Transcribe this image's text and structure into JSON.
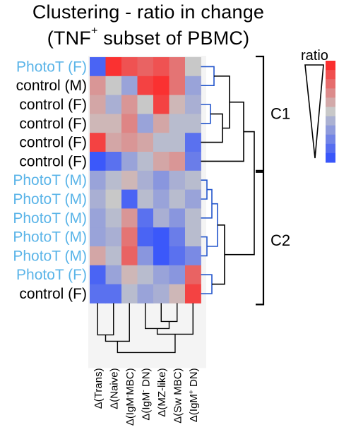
{
  "chart_data": {
    "type": "heatmap",
    "title_parts": [
      "Clustering - ratio in change",
      "(TNF",
      "+",
      " subset of PBMC)"
    ],
    "rows": [
      {
        "label": "PhotoT (F)",
        "color": "#5ab4e8"
      },
      {
        "label": "control (M)",
        "color": "#000000"
      },
      {
        "label": "control (F)",
        "color": "#000000"
      },
      {
        "label": "control (F)",
        "color": "#000000"
      },
      {
        "label": "control (F)",
        "color": "#000000"
      },
      {
        "label": "control (F)",
        "color": "#000000"
      },
      {
        "label": "PhotoT (M)",
        "color": "#5ab4e8"
      },
      {
        "label": "PhotoT (M)",
        "color": "#5ab4e8"
      },
      {
        "label": "PhotoT (M)",
        "color": "#5ab4e8"
      },
      {
        "label": "PhotoT (M)",
        "color": "#5ab4e8"
      },
      {
        "label": "PhotoT (M)",
        "color": "#5ab4e8"
      },
      {
        "label": "PhotoT (F)",
        "color": "#5ab4e8"
      },
      {
        "label": "control (F)",
        "color": "#000000"
      }
    ],
    "columns": [
      {
        "pre": "Δ(Trans",
        "sup": "",
        "post": ")"
      },
      {
        "pre": "Δ(Naive",
        "sup": "",
        "post": ")"
      },
      {
        "pre": "Δ(IgM",
        "sup": "-",
        "post": "MBC)"
      },
      {
        "pre": "Δ(IgM",
        "sup": "-",
        "post": " DN)"
      },
      {
        "pre": "Δ(MZ-like",
        "sup": "",
        "post": ")"
      },
      {
        "pre": "Δ(Sw MBC",
        "sup": "",
        "post": ")"
      },
      {
        "pre": "Δ(IgM",
        "sup": "+",
        "post": " DN)"
      }
    ],
    "values": [
      [
        0.1,
        0.95,
        0.85,
        0.8,
        0.85,
        0.75,
        0.5
      ],
      [
        0.65,
        0.5,
        0.35,
        0.9,
        0.95,
        0.75,
        0.35
      ],
      [
        0.6,
        0.4,
        0.65,
        0.5,
        0.9,
        0.55,
        0.4
      ],
      [
        0.55,
        0.55,
        0.7,
        0.35,
        0.6,
        0.45,
        0.45
      ],
      [
        0.9,
        0.6,
        0.65,
        0.6,
        0.45,
        0.45,
        0.15
      ],
      [
        0.05,
        0.15,
        0.35,
        0.45,
        0.6,
        0.65,
        0.2
      ],
      [
        0.35,
        0.45,
        0.55,
        0.4,
        0.3,
        0.4,
        0.45
      ],
      [
        0.4,
        0.5,
        0.1,
        0.45,
        0.35,
        0.45,
        0.35
      ],
      [
        0.35,
        0.45,
        0.65,
        0.15,
        0.4,
        0.3,
        0.45
      ],
      [
        0.35,
        0.4,
        0.75,
        0.1,
        0.05,
        0.2,
        0.45
      ],
      [
        0.6,
        0.45,
        0.8,
        0.3,
        0.05,
        0.15,
        0.25
      ],
      [
        0.1,
        0.35,
        0.55,
        0.45,
        0.35,
        0.3,
        0.8
      ],
      [
        0.15,
        0.15,
        0.45,
        0.35,
        0.4,
        0.55,
        0.9
      ]
    ],
    "color_scale": {
      "low": "#2b4bff",
      "mid": "#c8c8c8",
      "high": "#ff2020"
    },
    "legend": {
      "title": "ratio",
      "position": "right"
    },
    "clusters": [
      {
        "label": "C1"
      },
      {
        "label": "C2"
      }
    ],
    "row_dendrogram_colors": {
      "outer": "#000000",
      "inner": "#2255cc"
    },
    "col_dendrogram_color": "#000000"
  }
}
